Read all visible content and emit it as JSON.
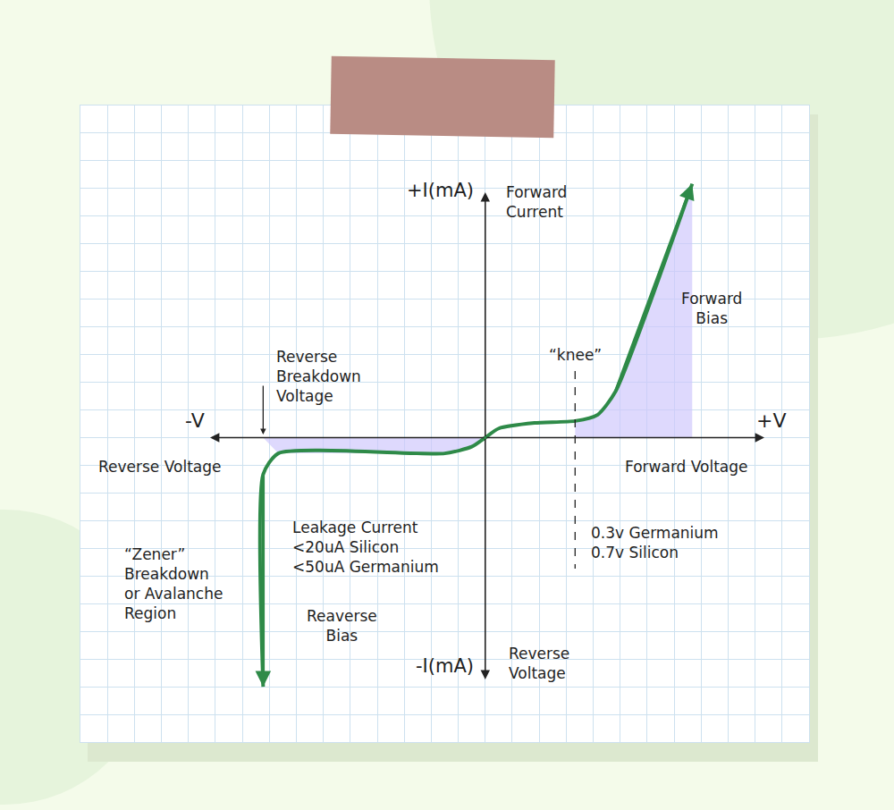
{
  "chart_data": {
    "type": "line",
    "x": [
      -8.23,
      -8.23,
      -7.67,
      -1.5,
      -0.5,
      0,
      0.5,
      1.83,
      3.33,
      4.17,
      4.83,
      7.67
    ],
    "values": [
      -9.0,
      -1.33,
      -0.57,
      -0.57,
      -0.33,
      0,
      0.33,
      0.53,
      0.6,
      0.83,
      1.67,
      9.17
    ],
    "color": "#2e8a48",
    "line_style": "solid",
    "xlim": [
      -15,
      12
    ],
    "ylim": [
      -11,
      12
    ],
    "xticks": [
      -15,
      -14,
      -13,
      -12,
      -11,
      -10,
      -9,
      -8,
      -7,
      -6,
      -5,
      -4,
      -3,
      -2,
      -1,
      0,
      1,
      2,
      3,
      4,
      5,
      6,
      7,
      8,
      9,
      10,
      11,
      12
    ],
    "yticks": [
      -11,
      -10,
      -9,
      -8,
      -7,
      -6,
      -5,
      -4,
      -3,
      -2,
      -1,
      0,
      1,
      2,
      3,
      4,
      5,
      6,
      7,
      8,
      9,
      10,
      11,
      12
    ],
    "grid": true,
    "tick_labels": false,
    "axis_labels": {
      "x_pos": "+V",
      "x_neg": "-V",
      "y_pos": "+I(mA)",
      "y_neg": "-I(mA)"
    },
    "knee": {
      "x": 3.33,
      "label": "“knee”",
      "notes": [
        "0.3v Germanium",
        "0.7v Silicon"
      ]
    },
    "breakdown": {
      "x": -8.23,
      "label": [
        "Reverse",
        "Breakdown",
        "Voltage"
      ]
    },
    "annotations": [
      {
        "text": [
          "Forward",
          "Current"
        ]
      },
      {
        "text": [
          "Forward",
          "Bias"
        ]
      },
      {
        "text": [
          "Reverse Voltage"
        ]
      },
      {
        "text": [
          "Forward Voltage"
        ]
      },
      {
        "text": [
          "Leakage Current",
          "<20uA Silicon",
          "<50uA Germanium"
        ]
      },
      {
        "text": [
          "“Zener”",
          "Breakdown",
          "or Avalanche",
          "Region"
        ]
      },
      {
        "text": [
          "Reaverse",
          "Bias"
        ]
      },
      {
        "text": [
          "Reverse",
          "Voltage"
        ]
      }
    ]
  }
}
